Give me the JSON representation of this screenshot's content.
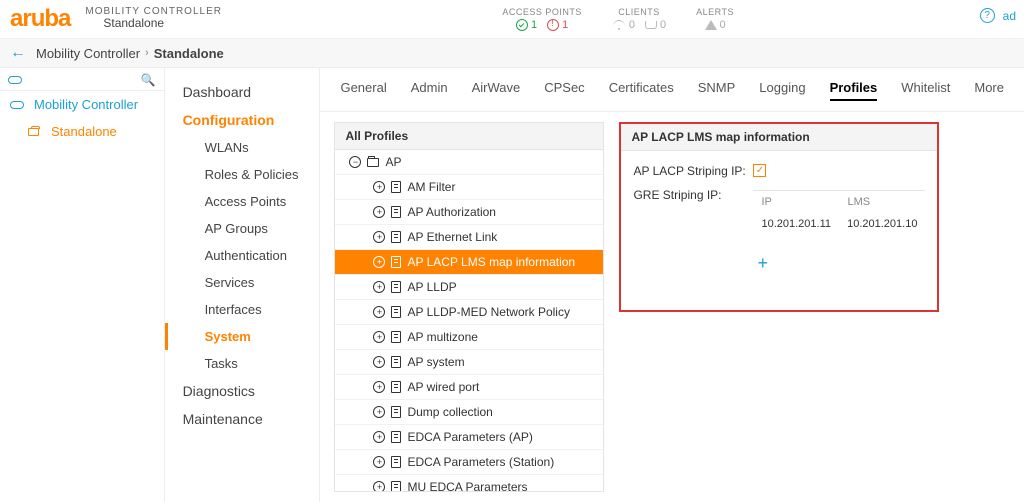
{
  "brand": "aruba",
  "title": {
    "main": "MOBILITY CONTROLLER",
    "sub": "Standalone"
  },
  "stats": {
    "access_points": {
      "label": "ACCESS POINTS",
      "ok": "1",
      "warn": "1"
    },
    "clients": {
      "label": "CLIENTS",
      "wifi": "0",
      "wired": "0"
    },
    "alerts": {
      "label": "ALERTS",
      "count": "0"
    }
  },
  "top_right": {
    "admin": "ad"
  },
  "breadcrumb": {
    "a": "Mobility Controller",
    "b": "Standalone"
  },
  "navtree": {
    "root": "Mobility Controller",
    "child": "Standalone"
  },
  "subnav": {
    "sections": [
      "Dashboard",
      "Configuration",
      "Diagnostics",
      "Maintenance"
    ],
    "active_section": "Configuration",
    "config_items": [
      "WLANs",
      "Roles & Policies",
      "Access Points",
      "AP Groups",
      "Authentication",
      "Services",
      "Interfaces",
      "System",
      "Tasks"
    ],
    "active_item": "System"
  },
  "tabs": {
    "items": [
      "General",
      "Admin",
      "AirWave",
      "CPSec",
      "Certificates",
      "SNMP",
      "Logging",
      "Profiles",
      "Whitelist",
      "More"
    ],
    "active": "Profiles"
  },
  "profiles": {
    "header": "All Profiles",
    "root": "AP",
    "children": [
      "AM Filter",
      "AP Authorization",
      "AP Ethernet Link",
      "AP LACP LMS map information",
      "AP LLDP",
      "AP LLDP-MED Network Policy",
      "AP multizone",
      "AP system",
      "AP wired port",
      "Dump collection",
      "EDCA Parameters (AP)",
      "EDCA Parameters (Station)",
      "MU EDCA Parameters"
    ],
    "selected": "AP LACP LMS map information"
  },
  "detail": {
    "header": "AP LACP LMS map information",
    "striping_label": "AP LACP Striping IP:",
    "gre_label": "GRE Striping IP:",
    "cols": {
      "ip": "IP",
      "lms": "LMS"
    },
    "rows": [
      {
        "ip": "10.201.201.11",
        "lms": "10.201.201.10"
      }
    ]
  },
  "colors": {
    "accent": "#ff8300",
    "link": "#1ca0d8",
    "ok": "#1fa54a",
    "error": "#e04c4c",
    "highlight_border": "#d33"
  }
}
